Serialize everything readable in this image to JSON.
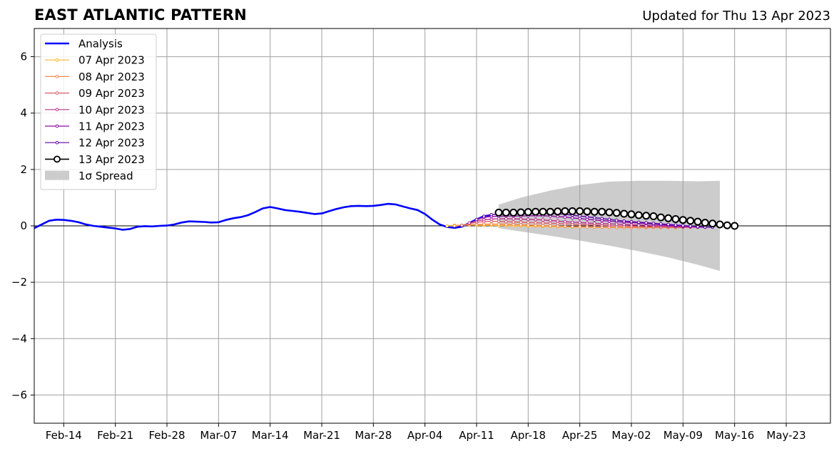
{
  "title": "EAST ATLANTIC PATTERN",
  "subtitle": "Updated for Thu 13 Apr 2023",
  "colors": {
    "analysis": "#0000ff",
    "spread": "#cccccc",
    "grid": "#a0a0a0",
    "forecast_2023-04-07": "#fdb32f",
    "forecast_2023-04-08": "#f48849",
    "forecast_2023-04-09": "#db5c68",
    "forecast_2023-04-10": "#b83289",
    "forecast_2023-04-11": "#8b0aa5",
    "forecast_2023-04-12": "#5c01a6",
    "forecast_2023-04-13": "#000000"
  },
  "chart_data": {
    "type": "line",
    "title": "EAST ATLANTIC PATTERN",
    "subtitle": "Updated for Thu 13 Apr 2023",
    "xlabel": "",
    "ylabel": "",
    "xlim": [
      "2023-02-10",
      "2023-05-29"
    ],
    "ylim": [
      -7,
      7
    ],
    "grid": true,
    "legend_position": "top-left",
    "x_tick_labels": [
      "Feb-14",
      "Feb-21",
      "Feb-28",
      "Mar-07",
      "Mar-14",
      "Mar-21",
      "Mar-28",
      "Apr-04",
      "Apr-11",
      "Apr-18",
      "Apr-25",
      "May-02",
      "May-09",
      "May-16",
      "May-23"
    ],
    "y_ticks": [
      -6,
      -4,
      -2,
      0,
      2,
      4,
      6
    ],
    "y_tick_labels": [
      "−6",
      "−4",
      "−2",
      "0",
      "2",
      "4",
      "6"
    ],
    "analysis": {
      "name": "Analysis",
      "points": [
        [
          "2023-02-10",
          -0.08
        ],
        [
          "2023-02-12",
          0.18
        ],
        [
          "2023-02-13",
          0.22
        ],
        [
          "2023-02-14",
          0.21
        ],
        [
          "2023-02-15",
          0.18
        ],
        [
          "2023-02-16",
          0.13
        ],
        [
          "2023-02-17",
          0.05
        ],
        [
          "2023-02-18",
          0.0
        ],
        [
          "2023-02-19",
          -0.03
        ],
        [
          "2023-02-20",
          -0.06
        ],
        [
          "2023-02-21",
          -0.09
        ],
        [
          "2023-02-22",
          -0.14
        ],
        [
          "2023-02-23",
          -0.11
        ],
        [
          "2023-02-24",
          -0.03
        ],
        [
          "2023-02-25",
          -0.01
        ],
        [
          "2023-02-26",
          -0.02
        ],
        [
          "2023-02-27",
          0.0
        ],
        [
          "2023-02-28",
          0.01
        ],
        [
          "2023-03-01",
          0.05
        ],
        [
          "2023-03-02",
          0.12
        ],
        [
          "2023-03-03",
          0.16
        ],
        [
          "2023-03-04",
          0.15
        ],
        [
          "2023-03-05",
          0.14
        ],
        [
          "2023-03-06",
          0.12
        ],
        [
          "2023-03-07",
          0.13
        ],
        [
          "2023-03-08",
          0.21
        ],
        [
          "2023-03-09",
          0.27
        ],
        [
          "2023-03-10",
          0.31
        ],
        [
          "2023-03-11",
          0.38
        ],
        [
          "2023-03-12",
          0.49
        ],
        [
          "2023-03-13",
          0.62
        ],
        [
          "2023-03-14",
          0.67
        ],
        [
          "2023-03-15",
          0.62
        ],
        [
          "2023-03-16",
          0.56
        ],
        [
          "2023-03-17",
          0.53
        ],
        [
          "2023-03-18",
          0.5
        ],
        [
          "2023-03-19",
          0.46
        ],
        [
          "2023-03-20",
          0.42
        ],
        [
          "2023-03-21",
          0.44
        ],
        [
          "2023-03-22",
          0.52
        ],
        [
          "2023-03-23",
          0.6
        ],
        [
          "2023-03-24",
          0.66
        ],
        [
          "2023-03-25",
          0.7
        ],
        [
          "2023-03-26",
          0.71
        ],
        [
          "2023-03-27",
          0.7
        ],
        [
          "2023-03-28",
          0.71
        ],
        [
          "2023-03-29",
          0.74
        ],
        [
          "2023-03-30",
          0.78
        ],
        [
          "2023-03-31",
          0.76
        ],
        [
          "2023-04-01",
          0.69
        ],
        [
          "2023-04-02",
          0.62
        ],
        [
          "2023-04-03",
          0.56
        ],
        [
          "2023-04-04",
          0.42
        ],
        [
          "2023-04-05",
          0.22
        ],
        [
          "2023-04-06",
          0.05
        ],
        [
          "2023-04-07",
          -0.04
        ],
        [
          "2023-04-08",
          -0.07
        ],
        [
          "2023-04-09",
          -0.03
        ],
        [
          "2023-04-10",
          0.1
        ],
        [
          "2023-04-11",
          0.23
        ],
        [
          "2023-04-12",
          0.34
        ],
        [
          "2023-04-13",
          0.39
        ]
      ]
    },
    "series": [
      {
        "name": "07 Apr 2023",
        "start": "2023-04-07",
        "values": [
          0.0,
          0.02,
          0.02,
          0.03,
          0.02,
          0.02,
          0.02,
          0.01,
          0.01,
          0.0,
          0.0,
          -0.01,
          -0.01,
          -0.02,
          -0.02,
          -0.03,
          -0.03,
          -0.04,
          -0.04,
          -0.04,
          -0.05,
          -0.05,
          -0.05,
          -0.05,
          -0.05,
          -0.05,
          -0.05,
          -0.05,
          -0.05,
          -0.05,
          -0.05,
          -0.05
        ]
      },
      {
        "name": "08 Apr 2023",
        "start": "2023-04-08",
        "values": [
          0.0,
          0.02,
          0.04,
          0.05,
          0.06,
          0.06,
          0.06,
          0.05,
          0.05,
          0.04,
          0.03,
          0.02,
          0.01,
          0.0,
          -0.01,
          -0.02,
          -0.03,
          -0.03,
          -0.04,
          -0.04,
          -0.05,
          -0.05,
          -0.06,
          -0.06,
          -0.06,
          -0.06,
          -0.06,
          -0.06,
          -0.06,
          -0.06,
          -0.06,
          -0.06
        ]
      },
      {
        "name": "09 Apr 2023",
        "start": "2023-04-09",
        "values": [
          0.02,
          0.08,
          0.13,
          0.15,
          0.16,
          0.16,
          0.15,
          0.14,
          0.13,
          0.12,
          0.11,
          0.1,
          0.09,
          0.08,
          0.07,
          0.06,
          0.05,
          0.04,
          0.03,
          0.02,
          0.01,
          0.0,
          -0.01,
          -0.02,
          -0.02,
          -0.03,
          -0.03,
          -0.04,
          -0.04,
          -0.05,
          -0.05,
          -0.05
        ]
      },
      {
        "name": "10 Apr 2023",
        "start": "2023-04-10",
        "values": [
          0.1,
          0.18,
          0.22,
          0.24,
          0.25,
          0.25,
          0.25,
          0.24,
          0.23,
          0.22,
          0.21,
          0.19,
          0.17,
          0.15,
          0.13,
          0.12,
          0.1,
          0.09,
          0.08,
          0.07,
          0.06,
          0.05,
          0.04,
          0.03,
          0.02,
          0.01,
          0.0,
          -0.01,
          -0.02,
          -0.03,
          -0.04,
          -0.05
        ]
      },
      {
        "name": "11 Apr 2023",
        "start": "2023-04-11",
        "values": [
          0.23,
          0.3,
          0.33,
          0.34,
          0.35,
          0.35,
          0.35,
          0.36,
          0.36,
          0.36,
          0.35,
          0.33,
          0.31,
          0.28,
          0.26,
          0.23,
          0.21,
          0.19,
          0.17,
          0.15,
          0.13,
          0.12,
          0.1,
          0.08,
          0.06,
          0.04,
          0.02,
          0.0,
          -0.01,
          -0.02,
          -0.04,
          -0.05
        ]
      },
      {
        "name": "12 Apr 2023",
        "start": "2023-04-12",
        "values": [
          0.34,
          0.4,
          0.41,
          0.42,
          0.43,
          0.43,
          0.43,
          0.44,
          0.44,
          0.44,
          0.43,
          0.41,
          0.38,
          0.35,
          0.32,
          0.29,
          0.26,
          0.23,
          0.2,
          0.17,
          0.15,
          0.13,
          0.11,
          0.09,
          0.07,
          0.05,
          0.03,
          0.01,
          -0.01,
          -0.03,
          -0.04,
          -0.05
        ]
      },
      {
        "name": "13 Apr 2023",
        "start": "2023-04-14",
        "values": [
          0.47,
          0.47,
          0.47,
          0.48,
          0.49,
          0.5,
          0.5,
          0.5,
          0.51,
          0.52,
          0.52,
          0.52,
          0.51,
          0.5,
          0.5,
          0.48,
          0.46,
          0.43,
          0.41,
          0.38,
          0.36,
          0.34,
          0.3,
          0.27,
          0.24,
          0.21,
          0.18,
          0.15,
          0.11,
          0.08,
          0.05,
          0.02,
          0.0
        ]
      }
    ],
    "spread": {
      "name": "1σ Spread",
      "points": [
        [
          "2023-04-14",
          0.75,
          -0.08
        ],
        [
          "2023-04-17",
          1.0,
          -0.2
        ],
        [
          "2023-04-21",
          1.25,
          -0.35
        ],
        [
          "2023-04-25",
          1.45,
          -0.52
        ],
        [
          "2023-04-29",
          1.57,
          -0.7
        ],
        [
          "2023-05-03",
          1.6,
          -0.9
        ],
        [
          "2023-05-07",
          1.6,
          -1.12
        ],
        [
          "2023-05-11",
          1.58,
          -1.38
        ],
        [
          "2023-05-14",
          1.6,
          -1.6
        ]
      ]
    }
  }
}
